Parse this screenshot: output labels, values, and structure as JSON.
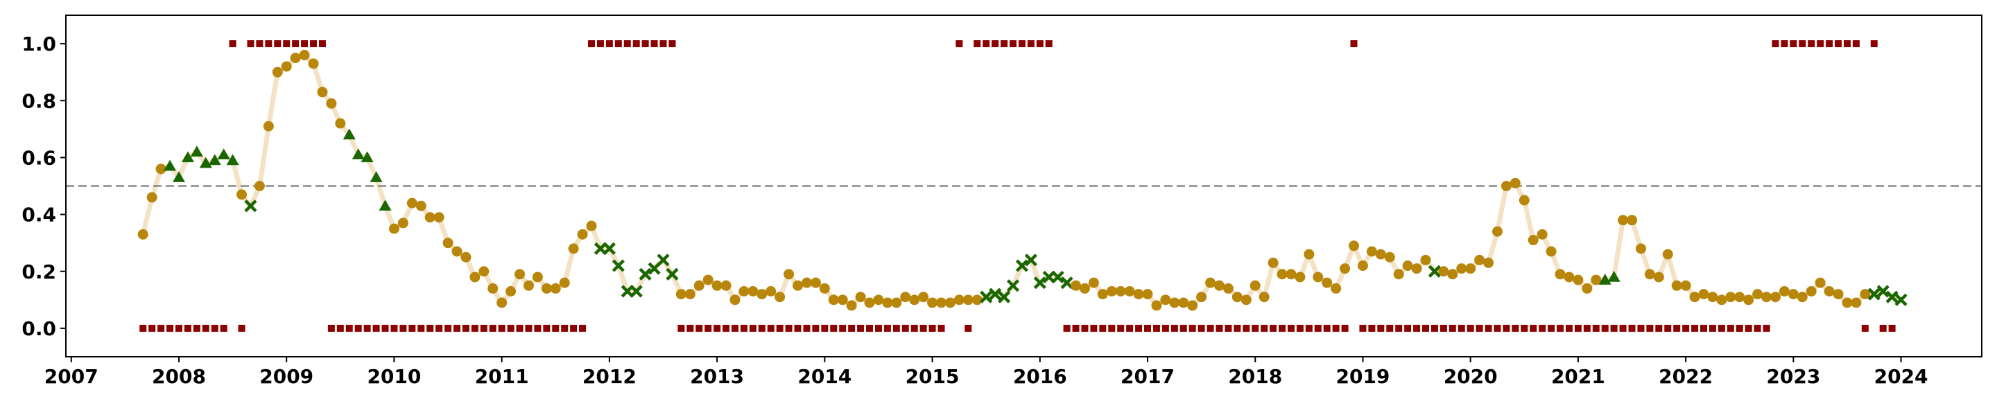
{
  "chart_data": {
    "type": "scatter",
    "title": "",
    "xlabel": "",
    "ylabel": "",
    "x_range": [
      2006.95,
      2024.75
    ],
    "y_range": [
      -0.1,
      1.1
    ],
    "x_ticks": [
      {
        "value": 2007,
        "label": "2007"
      },
      {
        "value": 2008,
        "label": "2008"
      },
      {
        "value": 2009,
        "label": "2009"
      },
      {
        "value": 2010,
        "label": "2010"
      },
      {
        "value": 2011,
        "label": "2011"
      },
      {
        "value": 2012,
        "label": "2012"
      },
      {
        "value": 2013,
        "label": "2013"
      },
      {
        "value": 2014,
        "label": "2014"
      },
      {
        "value": 2015,
        "label": "2015"
      },
      {
        "value": 2016,
        "label": "2016"
      },
      {
        "value": 2017,
        "label": "2017"
      },
      {
        "value": 2018,
        "label": "2018"
      },
      {
        "value": 2019,
        "label": "2019"
      },
      {
        "value": 2020,
        "label": "2020"
      },
      {
        "value": 2021,
        "label": "2021"
      },
      {
        "value": 2022,
        "label": "2022"
      },
      {
        "value": 2023,
        "label": "2023"
      },
      {
        "value": 2024,
        "label": "2024"
      }
    ],
    "y_ticks": [
      {
        "value": 0.0,
        "label": "0.0"
      },
      {
        "value": 0.2,
        "label": "0.2"
      },
      {
        "value": 0.4,
        "label": "0.4"
      },
      {
        "value": 0.6,
        "label": "0.6"
      },
      {
        "value": 0.8,
        "label": "0.8"
      },
      {
        "value": 1.0,
        "label": "1.0"
      }
    ],
    "threshold": 0.5,
    "grid": false,
    "legend": "none",
    "colors": {
      "line": "#f3e2c4",
      "circle": "#b8860b",
      "triangle": "#1a6600",
      "cross": "#1a6600",
      "square": "#8b0000",
      "threshold": "#888888",
      "axes": "#000000"
    },
    "values": [
      0.33,
      0.46,
      0.56,
      0.57,
      0.53,
      0.6,
      0.62,
      0.58,
      0.59,
      0.61,
      0.59,
      0.47,
      0.43,
      0.5,
      0.71,
      0.9,
      0.92,
      0.95,
      0.96,
      0.93,
      0.83,
      0.79,
      0.72,
      0.68,
      0.61,
      0.6,
      0.53,
      0.43,
      0.35,
      0.37,
      0.44,
      0.43,
      0.39,
      0.39,
      0.3,
      0.27,
      0.25,
      0.18,
      0.2,
      0.14,
      0.09,
      0.13,
      0.19,
      0.15,
      0.18,
      0.14,
      0.14,
      0.16,
      0.28,
      0.33,
      0.36,
      0.28,
      0.28,
      0.22,
      0.13,
      0.13,
      0.19,
      0.21,
      0.24,
      0.19,
      0.12,
      0.12,
      0.15,
      0.17,
      0.15,
      0.15,
      0.1,
      0.13,
      0.13,
      0.12,
      0.13,
      0.11,
      0.19,
      0.15,
      0.16,
      0.16,
      0.14,
      0.1,
      0.1,
      0.08,
      0.11,
      0.09,
      0.1,
      0.09,
      0.09,
      0.11,
      0.1,
      0.11,
      0.09,
      0.09,
      0.09,
      0.1,
      0.1,
      0.1,
      0.11,
      0.12,
      0.11,
      0.15,
      0.22,
      0.24,
      0.16,
      0.18,
      0.18,
      0.16,
      0.15,
      0.14,
      0.16,
      0.12,
      0.13,
      0.13,
      0.13,
      0.12,
      0.12,
      0.08,
      0.1,
      0.09,
      0.09,
      0.08,
      0.11,
      0.16,
      0.15,
      0.14,
      0.11,
      0.1,
      0.15,
      0.11,
      0.23,
      0.19,
      0.19,
      0.18,
      0.26,
      0.18,
      0.16,
      0.14,
      0.21,
      0.29,
      0.22,
      0.27,
      0.26,
      0.25,
      0.19,
      0.22,
      0.21,
      0.24,
      0.2,
      0.2,
      0.19,
      0.21,
      0.21,
      0.24,
      0.23,
      0.34,
      0.5,
      0.51,
      0.45,
      0.31,
      0.33,
      0.27,
      0.19,
      0.18,
      0.17,
      0.14,
      0.17,
      0.17,
      0.18,
      0.38,
      0.38,
      0.28,
      0.19,
      0.18,
      0.26,
      0.15,
      0.15,
      0.11,
      0.12,
      0.11,
      0.1,
      0.11,
      0.11,
      0.1,
      0.12,
      0.11,
      0.11,
      0.13,
      0.12,
      0.11,
      0.13,
      0.16,
      0.13,
      0.12,
      0.09,
      0.09,
      0.12,
      0.12,
      0.13,
      0.11,
      0.1
    ],
    "markers": "cccttttttttcxcccccccccctttttcccccccccccccccccccccccxxxxxxxxxccccccccccccccccccccccccccccccccccxxxxxxxxxxccccccccccccccccccccccccccccccccccccccccxccccccccccccccccccttccccccccccccccccccccccccccccxxxxxxxxxxcc",
    "start_date": "2007-09",
    "high_months": [
      "2008-07",
      "2008-09",
      "2008-10",
      "2008-11",
      "2008-12",
      "2009-01",
      "2009-02",
      "2009-03",
      "2009-04",
      "2009-05",
      "2011-11",
      "2011-12",
      "2012-01",
      "2012-02",
      "2012-03",
      "2012-04",
      "2012-05",
      "2012-06",
      "2012-07",
      "2012-08",
      "2015-04",
      "2015-06",
      "2015-07",
      "2015-08",
      "2015-09",
      "2015-10",
      "2015-11",
      "2015-12",
      "2016-01",
      "2016-02",
      "2018-12",
      "2022-11",
      "2022-12",
      "2023-01",
      "2023-02",
      "2023-03",
      "2023-04",
      "2023-05",
      "2023-06",
      "2023-07",
      "2023-08",
      "2023-10"
    ],
    "low_months": [
      "2007-09",
      "2007-10",
      "2007-11",
      "2007-12",
      "2008-01",
      "2008-02",
      "2008-03",
      "2008-04",
      "2008-05",
      "2008-06",
      "2008-08",
      "2009-06",
      "2009-07",
      "2009-08",
      "2009-09",
      "2009-10",
      "2009-11",
      "2009-12",
      "2010-01",
      "2010-02",
      "2010-03",
      "2010-04",
      "2010-05",
      "2010-06",
      "2010-07",
      "2010-08",
      "2010-09",
      "2010-10",
      "2010-11",
      "2010-12",
      "2011-01",
      "2011-02",
      "2011-03",
      "2011-04",
      "2011-05",
      "2011-06",
      "2011-07",
      "2011-08",
      "2011-09",
      "2011-10",
      "2012-09",
      "2012-10",
      "2012-11",
      "2012-12",
      "2013-01",
      "2013-02",
      "2013-03",
      "2013-04",
      "2013-05",
      "2013-06",
      "2013-07",
      "2013-08",
      "2013-09",
      "2013-10",
      "2013-11",
      "2013-12",
      "2014-01",
      "2014-02",
      "2014-03",
      "2014-04",
      "2014-05",
      "2014-06",
      "2014-07",
      "2014-08",
      "2014-09",
      "2014-10",
      "2014-11",
      "2014-12",
      "2015-01",
      "2015-02",
      "2015-05",
      "2016-04",
      "2016-05",
      "2016-06",
      "2016-07",
      "2016-08",
      "2016-09",
      "2016-10",
      "2016-11",
      "2016-12",
      "2017-01",
      "2017-02",
      "2017-03",
      "2017-04",
      "2017-05",
      "2017-06",
      "2017-07",
      "2017-08",
      "2017-09",
      "2017-10",
      "2017-11",
      "2017-12",
      "2018-01",
      "2018-02",
      "2018-03",
      "2018-04",
      "2018-05",
      "2018-06",
      "2018-07",
      "2018-08",
      "2018-09",
      "2018-10",
      "2018-11",
      "2019-01",
      "2019-02",
      "2019-03",
      "2019-04",
      "2019-05",
      "2019-06",
      "2019-07",
      "2019-08",
      "2019-09",
      "2019-10",
      "2019-11",
      "2019-12",
      "2020-01",
      "2020-02",
      "2020-03",
      "2020-04",
      "2020-05",
      "2020-06",
      "2020-07",
      "2020-08",
      "2020-09",
      "2020-10",
      "2020-11",
      "2020-12",
      "2021-01",
      "2021-02",
      "2021-03",
      "2021-04",
      "2021-05",
      "2021-06",
      "2021-07",
      "2021-08",
      "2021-09",
      "2021-10",
      "2021-11",
      "2021-12",
      "2022-01",
      "2022-02",
      "2022-03",
      "2022-04",
      "2022-05",
      "2022-06",
      "2022-07",
      "2022-08",
      "2022-09",
      "2022-10",
      "2023-09",
      "2023-11",
      "2023-12"
    ]
  }
}
